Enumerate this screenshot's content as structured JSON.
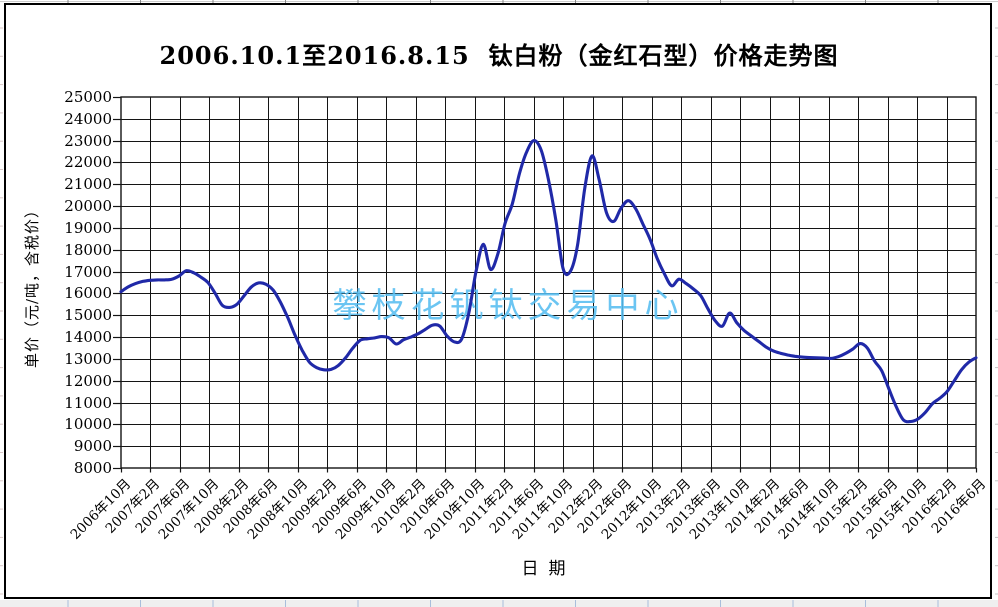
{
  "title": "2006.10.1至2016.8.15  钛白粉（金红石型）价格走势图",
  "watermark": "攀枝花钒钛交易中心",
  "chart_data": {
    "type": "line",
    "title": "2006.10.1至2016.8.15  钛白粉（金红石型）价格走势图",
    "xlabel": "日期",
    "ylabel": "单价（元/吨，含税价）",
    "ylim": [
      8000,
      25000
    ],
    "ytick_step": 1000,
    "grid": true,
    "legend": "none",
    "line_color": "#2029a8",
    "grid_color": "#141414",
    "watermark_color": "#57bef1",
    "x_start": "2006年10月",
    "x_end": "2016年8月",
    "x_step_months": 1,
    "x_tick_labels": [
      "2006年10月",
      "2007年2月",
      "2007年6月",
      "2007年10月",
      "2008年2月",
      "2008年6月",
      "2008年10月",
      "2009年2月",
      "2009年6月",
      "2009年10月",
      "2010年2月",
      "2010年6月",
      "2010年10月",
      "2011年2月",
      "2011年6月",
      "2011年10月",
      "2012年2月",
      "2012年6月",
      "2012年10月",
      "2013年2月",
      "2013年6月",
      "2013年10月",
      "2014年2月",
      "2014年6月",
      "2014年10月",
      "2015年2月",
      "2015年6月",
      "2015年10月",
      "2016年2月",
      "2016年6月"
    ],
    "series": [
      {
        "name": "钛白粉（金红石型）价格（元/吨）",
        "values": [
          16080,
          16300,
          16450,
          16550,
          16600,
          16620,
          16620,
          16650,
          16800,
          17040,
          16950,
          16750,
          16500,
          16000,
          15450,
          15360,
          15500,
          15900,
          16300,
          16480,
          16420,
          16150,
          15600,
          14900,
          14100,
          13400,
          12850,
          12600,
          12500,
          12520,
          12700,
          13050,
          13500,
          13850,
          13920,
          13960,
          14020,
          13960,
          13680,
          13880,
          14000,
          14150,
          14350,
          14550,
          14500,
          14050,
          13780,
          13900,
          15100,
          17000,
          18250,
          17100,
          17800,
          19200,
          20100,
          21500,
          22500,
          23000,
          22550,
          21200,
          19400,
          17150,
          17000,
          18200,
          20800,
          22300,
          21200,
          19700,
          19300,
          19900,
          20250,
          19900,
          19200,
          18500,
          17600,
          16900,
          16350,
          16650,
          16450,
          16200,
          15900,
          15300,
          14750,
          14500,
          15100,
          14650,
          14300,
          14050,
          13800,
          13550,
          13370,
          13260,
          13180,
          13120,
          13080,
          13060,
          13050,
          13040,
          13020,
          13100,
          13250,
          13450,
          13700,
          13500,
          12900,
          12450,
          11600,
          10800,
          10200,
          10130,
          10250,
          10550,
          10950,
          11200,
          11500,
          12000,
          12500,
          12850,
          13050
        ]
      }
    ]
  }
}
